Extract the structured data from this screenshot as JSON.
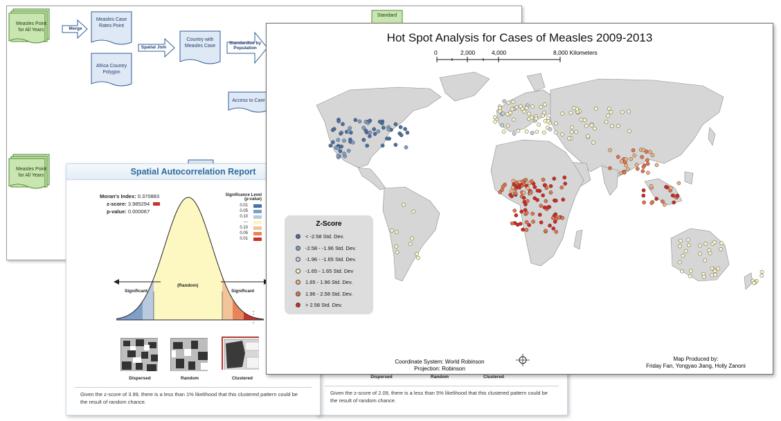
{
  "flowchart": {
    "data_inputs": [
      "Measles Point for All Years",
      "Measles Point for All Years"
    ],
    "processes": [
      "Measles Case Rates Point",
      "Africa Country Polygon",
      "Country with Measles Case",
      "Access to Care",
      "Standard"
    ],
    "tools": [
      "Merge",
      "Spatial Join",
      "Standardize by Population"
    ]
  },
  "report": {
    "title": "Spatial Autocorrelation Report",
    "morans_label": "Moran's Index:",
    "morans_value": "0.370883",
    "zscore_label": "z-score:",
    "zscore_value": "3.985294",
    "pvalue_label": "p-value:",
    "pvalue_value": "0.000067",
    "sig_title": "Significance Level",
    "sig_sub": "(p-value)",
    "sig_levels": [
      "0.01",
      "0.05",
      "0.10",
      "---",
      "0.10",
      "0.05",
      "0.01"
    ],
    "sig_colors": [
      "#4a6fa5",
      "#7f9fc9",
      "#b9c9de",
      "#fbf5c4",
      "#f2c49a",
      "#e8845a",
      "#c9332a"
    ],
    "curve_center": "(Random)",
    "curve_left": "Significant",
    "curve_right": "Significant",
    "patterns": [
      "Dispersed",
      "Random",
      "Clustered"
    ],
    "footnote": "Given the z-score of 3.99, there is a less than 1% likelihood that this clustered pattern could be the result of random chance.",
    "footnote2": "Given the z-score of 2.09, there is a less than 5% likelihood that this clustered pattern could be the result of random chance."
  },
  "map": {
    "title": "Hot Spot Analysis for Cases of Measles 2009-2013",
    "scale_ticks": [
      "0",
      "2,000",
      "4,000",
      "8,000 Kilometers"
    ],
    "legend_title": "Z-Score",
    "legend": [
      {
        "label": "< -2.58 Std. Dev.",
        "color": "#4a6fa5"
      },
      {
        "label": "-2.58 - -1.96 Std. Dev.",
        "color": "#7f9fc9"
      },
      {
        "label": "-1.96 - -1.65 Std. Dev.",
        "color": "#c5cfd9"
      },
      {
        "label": "-1.65 - 1.65 Std. Dev",
        "color": "#fbf5c4"
      },
      {
        "label": "1.65 - 1.96 Std. Dev.",
        "color": "#f2b27e"
      },
      {
        "label": "1.96 - 2.58 Std. Dev.",
        "color": "#e8714a"
      },
      {
        "label": "> 2.58 Std. Dev.",
        "color": "#d7261e"
      }
    ],
    "coord_system": "Coordinate System: World Robinson",
    "projection": "Projection: Robinson",
    "produced_by_label": "Map Produced by:",
    "authors": "Friday Fan, Yongyao Jiang, Holly Zanoni",
    "second_panel_patterns": [
      "Dispersed",
      "Random",
      "Clustered"
    ]
  }
}
